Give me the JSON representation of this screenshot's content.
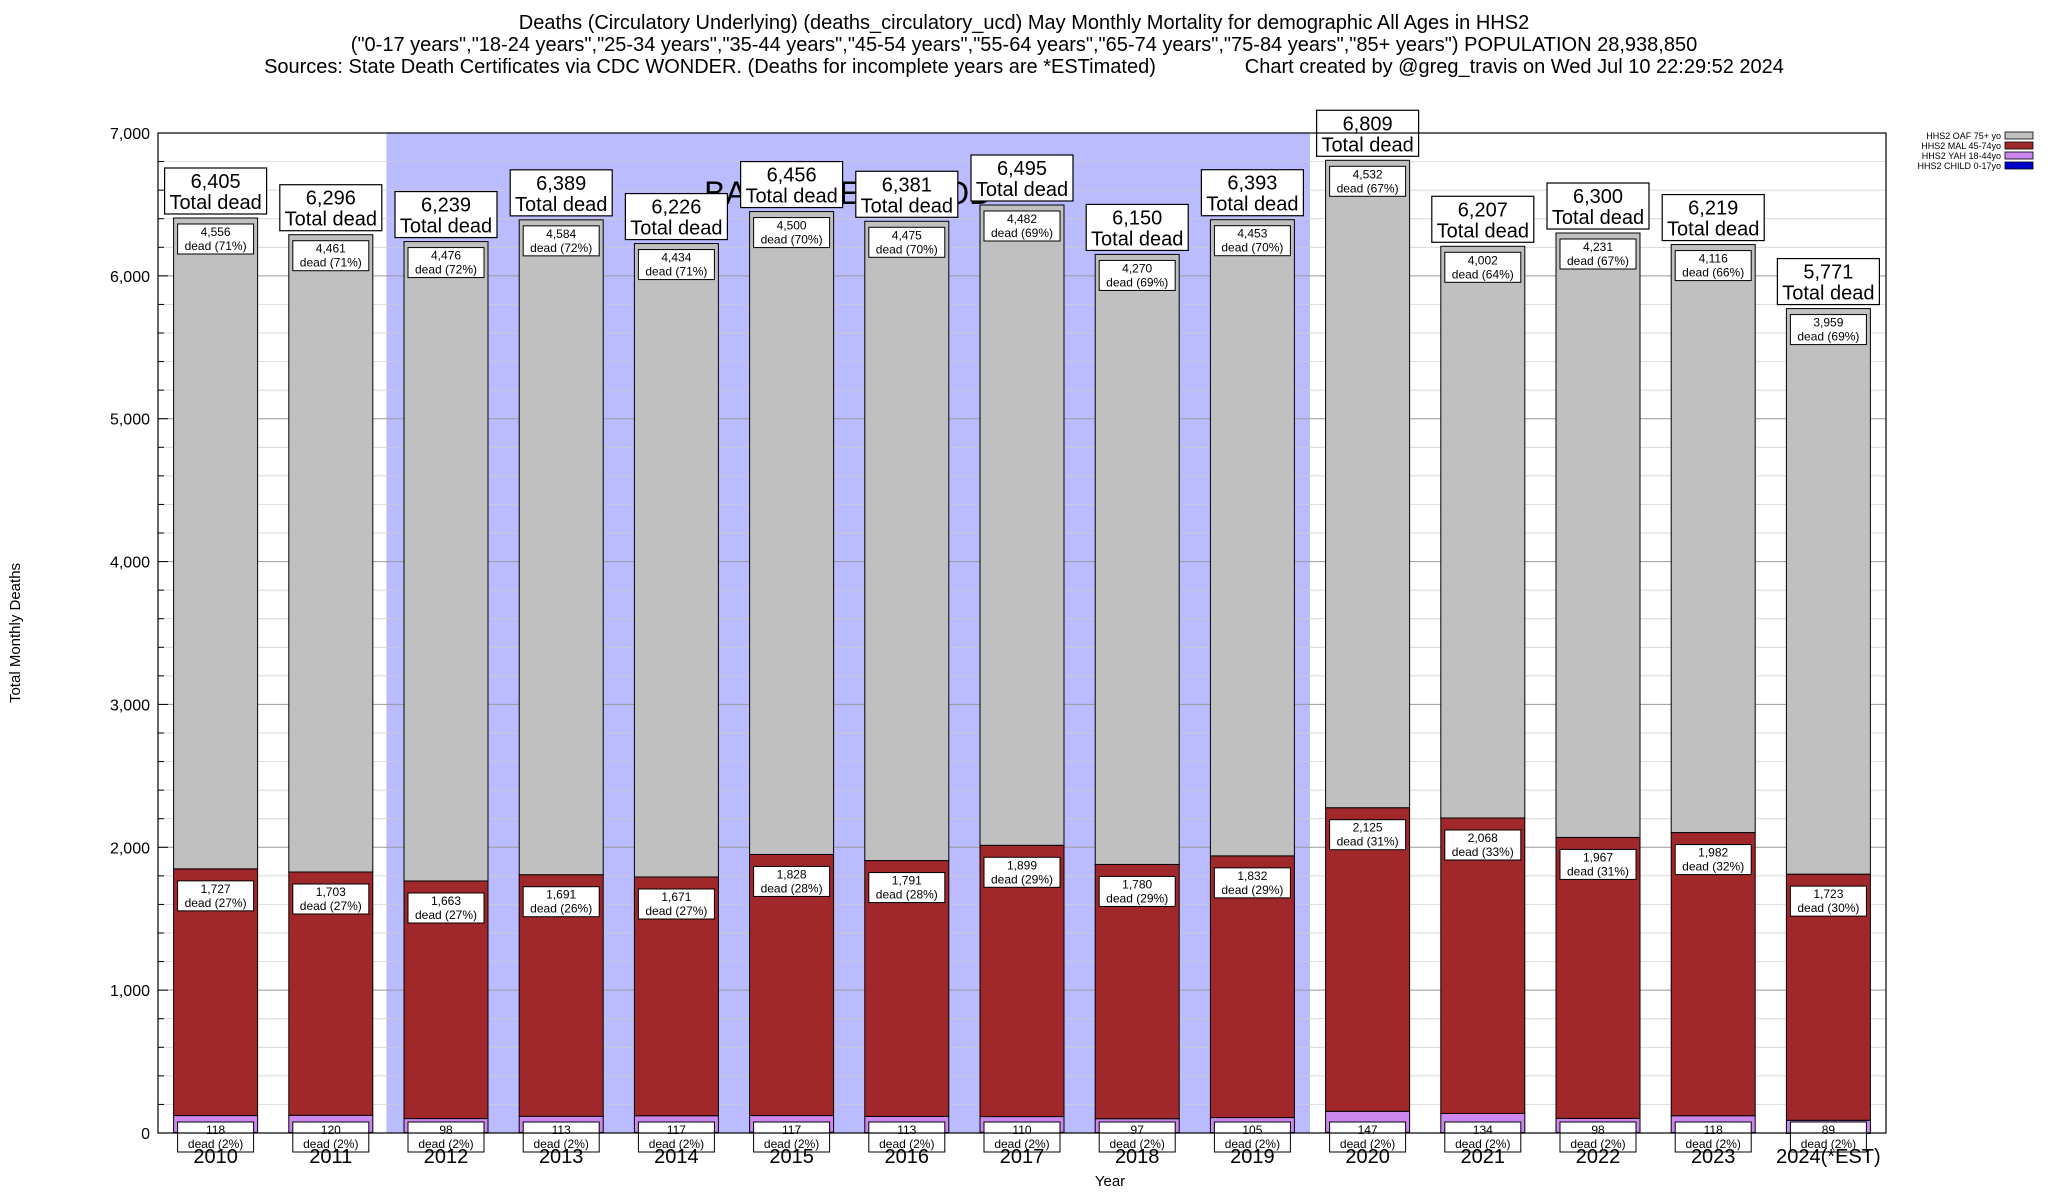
{
  "header": {
    "line1": "Deaths (Circulatory Underlying) (deaths_circulatory_ucd) May Monthly Mortality for demographic All Ages in HHS2",
    "line2": "(\"0-17 years\",\"18-24 years\",\"25-34 years\",\"35-44 years\",\"45-54 years\",\"55-64 years\",\"65-74 years\",\"75-84 years\",\"85+ years\") POPULATION 28,938,850",
    "line3_left": "Sources: State Death Certificates via CDC WONDER. (Deaths for incomplete years are *ESTimated)",
    "line3_right": "Chart created by @greg_travis on Wed Jul 10 22:29:52 2024"
  },
  "colors": {
    "baseline_band": "#bbbbff",
    "oaf": "#c0c0c0",
    "mal": "#a0282a",
    "yah": "#cc88ee",
    "child": "#0000cc"
  },
  "chart_data": {
    "type": "bar",
    "stacked": true,
    "xlabel": "Year",
    "ylabel": "Total Monthly Deaths",
    "ylim": [
      0,
      7000
    ],
    "yticks": [
      "0",
      "1,000",
      "2,000",
      "3,000",
      "4,000",
      "5,000",
      "6,000",
      "7,000"
    ],
    "baseline_label": "BASELINE PERIOD",
    "baseline_range": [
      "2012",
      "2019"
    ],
    "total_suffix": "Total dead",
    "dead_prefix": "dead",
    "legend_position": "top-right",
    "legend": [
      "HHS2 OAF 75+ yo",
      "HHS2 MAL 45-74yo",
      "HHS2 YAH 18-44yo",
      "HHS2 CHILD 0-17yo"
    ],
    "categories": [
      "2010",
      "2011",
      "2012",
      "2013",
      "2014",
      "2015",
      "2016",
      "2017",
      "2018",
      "2019",
      "2020",
      "2021",
      "2022",
      "2023",
      "2024(*EST)"
    ],
    "totals": [
      6405,
      6296,
      6239,
      6389,
      6226,
      6456,
      6381,
      6495,
      6150,
      6393,
      6809,
      6207,
      6300,
      6219,
      5771
    ],
    "total_labels": [
      "6,405",
      "6,296",
      "6,239",
      "6,389",
      "6,226",
      "6,456",
      "6,381",
      "6,495",
      "6,150",
      "6,393",
      "6,809",
      "6,207",
      "6,300",
      "6,219",
      "5,771"
    ],
    "series": [
      {
        "name": "HHS2 CHILD 0-17yo",
        "values": [
          4,
          4,
          3,
          4,
          4,
          5,
          3,
          5,
          3,
          3,
          5,
          3,
          4,
          3,
          0
        ]
      },
      {
        "name": "HHS2 YAH 18-44yo",
        "values": [
          118,
          120,
          98,
          113,
          117,
          117,
          113,
          110,
          97,
          105,
          147,
          134,
          98,
          118,
          89
        ],
        "labels": [
          "118",
          "120",
          "98",
          "113",
          "117",
          "117",
          "113",
          "110",
          "97",
          "105",
          "147",
          "134",
          "98",
          "118",
          "89"
        ],
        "pcts": [
          "(2%)",
          "(2%)",
          "(2%)",
          "(2%)",
          "(2%)",
          "(2%)",
          "(2%)",
          "(2%)",
          "(2%)",
          "(2%)",
          "(2%)",
          "(2%)",
          "(2%)",
          "(2%)",
          "(2%)"
        ]
      },
      {
        "name": "HHS2 MAL 45-74yo",
        "values": [
          1727,
          1703,
          1663,
          1691,
          1671,
          1828,
          1791,
          1899,
          1780,
          1832,
          2125,
          2068,
          1967,
          1982,
          1723
        ],
        "labels": [
          "1,727",
          "1,703",
          "1,663",
          "1,691",
          "1,671",
          "1,828",
          "1,791",
          "1,899",
          "1,780",
          "1,832",
          "2,125",
          "2,068",
          "1,967",
          "1,982",
          "1,723"
        ],
        "pcts": [
          "(27%)",
          "(27%)",
          "(27%)",
          "(26%)",
          "(27%)",
          "(28%)",
          "(28%)",
          "(29%)",
          "(29%)",
          "(29%)",
          "(31%)",
          "(33%)",
          "(31%)",
          "(32%)",
          "(30%)"
        ]
      },
      {
        "name": "HHS2 OAF 75+ yo",
        "values": [
          4556,
          4461,
          4476,
          4584,
          4434,
          4500,
          4475,
          4482,
          4270,
          4453,
          4532,
          4002,
          4231,
          4116,
          3959
        ],
        "labels": [
          "4,556",
          "4,461",
          "4,476",
          "4,584",
          "4,434",
          "4,500",
          "4,475",
          "4,482",
          "4,270",
          "4,453",
          "4,532",
          "4,002",
          "4,231",
          "4,116",
          "3,959"
        ],
        "pcts": [
          "(71%)",
          "(71%)",
          "(72%)",
          "(72%)",
          "(71%)",
          "(70%)",
          "(70%)",
          "(69%)",
          "(69%)",
          "(70%)",
          "(67%)",
          "(64%)",
          "(67%)",
          "(66%)",
          "(69%)"
        ]
      }
    ]
  }
}
